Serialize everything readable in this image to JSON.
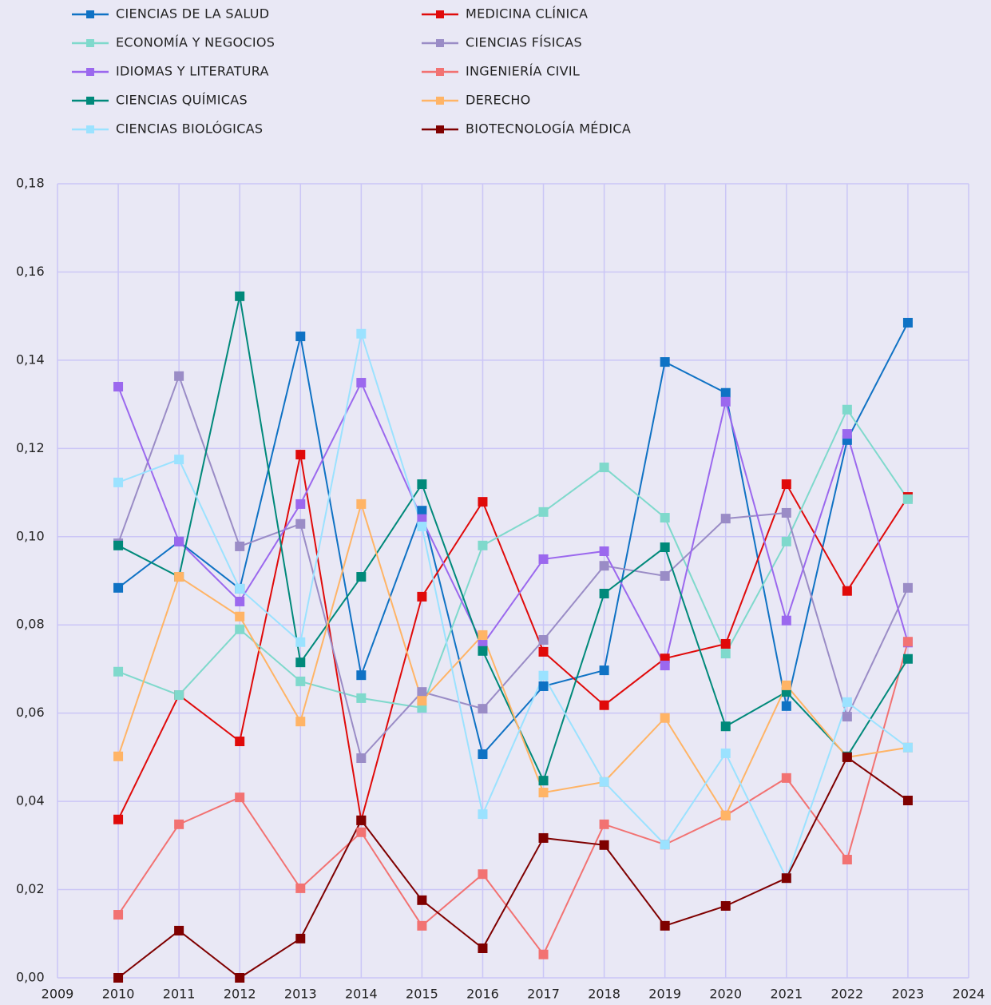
{
  "chart_data": {
    "type": "line",
    "x": [
      2010,
      2011,
      2012,
      2013,
      2014,
      2015,
      2016,
      2017,
      2018,
      2019,
      2020,
      2021,
      2022,
      2023
    ],
    "xlim": [
      2009,
      2024
    ],
    "xticks": [
      2009,
      2010,
      2011,
      2012,
      2013,
      2014,
      2015,
      2016,
      2017,
      2018,
      2019,
      2020,
      2021,
      2022,
      2023,
      2024
    ],
    "ylim": [
      0,
      0.18
    ],
    "yticks": [
      {
        "value": 0,
        "label": "0,00"
      },
      {
        "value": 0.02,
        "label": "0,02"
      },
      {
        "value": 0.04,
        "label": "0,04"
      },
      {
        "value": 0.06,
        "label": "0,06"
      },
      {
        "value": 0.08,
        "label": "0,08"
      },
      {
        "value": 0.1,
        "label": "0,10"
      },
      {
        "value": 0.12,
        "label": "0,12"
      },
      {
        "value": 0.14,
        "label": "0,14"
      },
      {
        "value": 0.16,
        "label": "0,16"
      },
      {
        "value": 0.18,
        "label": "0,18"
      }
    ],
    "grid": true,
    "legend": "top-left",
    "series": [
      {
        "name": "CIENCIAS DE LA SALUD",
        "color": "#0f72c4",
        "values": [
          0.0884,
          0.0989,
          0.0882,
          0.1454,
          0.0686,
          0.1059,
          0.0507,
          0.0661,
          0.0697,
          0.1396,
          0.1326,
          0.0616,
          0.1219,
          0.1485
        ]
      },
      {
        "name": "MEDICINA CLÍNICA",
        "color": "#e00a0a",
        "values": [
          0.0359,
          0.0641,
          0.0536,
          0.1186,
          0.0357,
          0.0864,
          0.1079,
          0.0739,
          0.0618,
          0.0724,
          0.0757,
          0.1119,
          0.0877,
          0.109
        ]
      },
      {
        "name": "ECONOMÍA Y NEGOCIOS",
        "color": "#7fd9cc",
        "values": [
          0.0694,
          0.0641,
          0.079,
          0.0672,
          0.0634,
          0.0612,
          0.098,
          0.1056,
          0.1157,
          0.1043,
          0.0735,
          0.0989,
          0.1288,
          0.1085
        ]
      },
      {
        "name": "CIENCIAS FÍSICAS",
        "color": "#9a8cc6",
        "values": [
          0.0985,
          0.1364,
          0.0978,
          0.1029,
          0.0498,
          0.0648,
          0.061,
          0.0766,
          0.0934,
          0.0911,
          0.1041,
          0.1054,
          0.0592,
          0.0884
        ]
      },
      {
        "name": "IDIOMAS Y LITERATURA",
        "color": "#9b68ee",
        "values": [
          0.134,
          0.0989,
          0.0853,
          0.1074,
          0.1349,
          0.104,
          0.0755,
          0.0949,
          0.0967,
          0.0708,
          0.1306,
          0.081,
          0.1233,
          0.076
        ]
      },
      {
        "name": "INGENIERÍA CIVIL",
        "color": "#f27272",
        "values": [
          0.0143,
          0.0348,
          0.0409,
          0.0203,
          0.033,
          0.0118,
          0.0235,
          0.0053,
          0.0348,
          0.0302,
          0.0368,
          0.0453,
          0.0268,
          0.0762
        ]
      },
      {
        "name": "CIENCIAS QUÍMICAS",
        "color": "#00897a",
        "values": [
          0.098,
          0.0909,
          0.1545,
          0.0715,
          0.0909,
          0.1119,
          0.0741,
          0.0447,
          0.0871,
          0.0976,
          0.057,
          0.0648,
          0.0502,
          0.0723
        ]
      },
      {
        "name": "DERECHO",
        "color": "#ffb466",
        "values": [
          0.0502,
          0.0909,
          0.0819,
          0.0581,
          0.1074,
          0.0628,
          0.0777,
          0.042,
          0.0444,
          0.0589,
          0.0368,
          0.0663,
          0.05,
          0.0522
        ]
      },
      {
        "name": "CIENCIAS BIOLÓGICAS",
        "color": "#9be2ff",
        "values": [
          0.1123,
          0.1175,
          0.0882,
          0.0761,
          0.146,
          0.1023,
          0.0371,
          0.0685,
          0.0444,
          0.0302,
          0.0509,
          0.0226,
          0.0625,
          0.0522
        ]
      },
      {
        "name": "BIOTECNOLOGÍA MÉDICA",
        "color": "#7f0000",
        "values": [
          0,
          0.0107,
          0,
          0.0089,
          0.0357,
          0.0176,
          0.0067,
          0.0317,
          0.0301,
          0.0118,
          0.0163,
          0.0226,
          0.05,
          0.0402
        ]
      }
    ]
  }
}
